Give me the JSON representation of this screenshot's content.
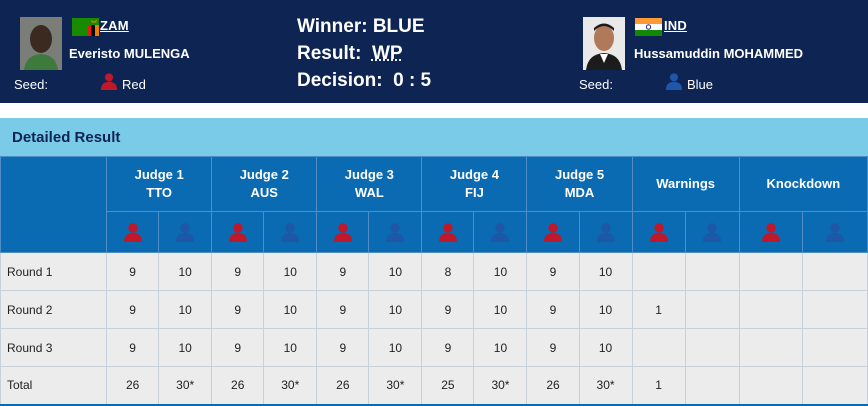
{
  "header": {
    "red": {
      "country": "ZAM",
      "name": "Everisto MULENGA",
      "seed_label": "Seed:",
      "seed_value": "Red",
      "seed_color": "#c0182b"
    },
    "blue": {
      "country": "IND",
      "name": "Hussamuddin MOHAMMED",
      "seed_label": "Seed:",
      "seed_value": "Blue",
      "seed_color": "#1e56a8"
    },
    "result": {
      "winner_label": "Winner:",
      "winner_value": "BLUE",
      "result_label": "Result:",
      "result_value": "WP",
      "decision_label": "Decision:",
      "decision_value": "0 : 5"
    }
  },
  "section": {
    "title": "Detailed Result"
  },
  "table": {
    "judges": [
      {
        "label": "Judge 1",
        "country": "TTO"
      },
      {
        "label": "Judge 2",
        "country": "AUS"
      },
      {
        "label": "Judge 3",
        "country": "WAL"
      },
      {
        "label": "Judge 4",
        "country": "FIJ"
      },
      {
        "label": "Judge 5",
        "country": "MDA"
      }
    ],
    "warnings_label": "Warnings",
    "knockdown_label": "Knockdown",
    "rows": [
      {
        "label": "Round 1",
        "cells": [
          "9",
          "10",
          "9",
          "10",
          "9",
          "10",
          "8",
          "10",
          "9",
          "10",
          "",
          "",
          "",
          ""
        ]
      },
      {
        "label": "Round 2",
        "cells": [
          "9",
          "10",
          "9",
          "10",
          "9",
          "10",
          "9",
          "10",
          "9",
          "10",
          "1",
          "",
          "",
          ""
        ]
      },
      {
        "label": "Round 3",
        "cells": [
          "9",
          "10",
          "9",
          "10",
          "9",
          "10",
          "9",
          "10",
          "9",
          "10",
          "",
          "",
          "",
          ""
        ]
      },
      {
        "label": "Total",
        "cells": [
          "26",
          "30*",
          "26",
          "30*",
          "26",
          "30*",
          "25",
          "30*",
          "26",
          "30*",
          "1",
          "",
          "",
          ""
        ]
      }
    ]
  },
  "colors": {
    "header_bg": "#0e2452",
    "section_title_bg": "#79cbe8",
    "table_header_bg": "#0a6ab2",
    "red_corner": "#c0182b",
    "blue_corner": "#1e56a8"
  }
}
